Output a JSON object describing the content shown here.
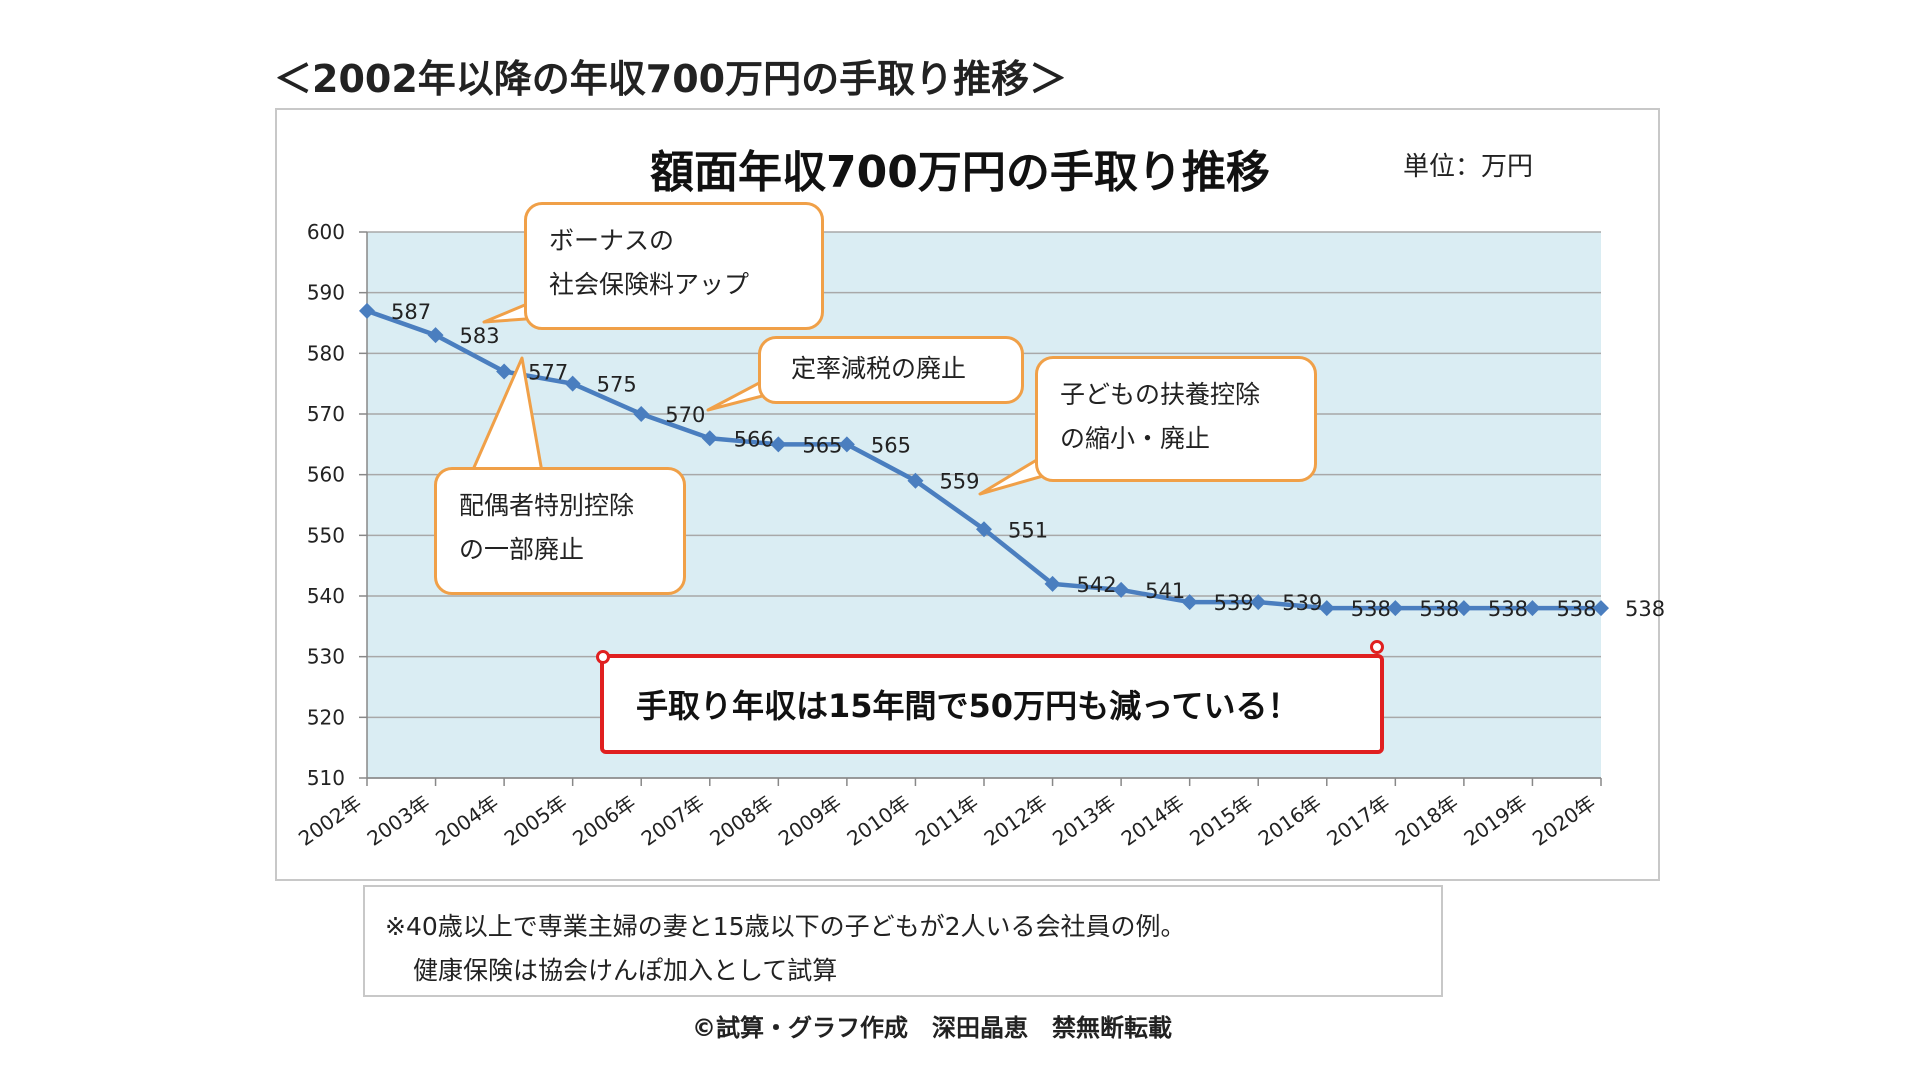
{
  "page_title": "＜2002年以降の年収700万円の手取り推移＞",
  "unit": "単位：万円",
  "callouts": {
    "bonus": [
      "ボーナスの",
      "社会保険料アップ"
    ],
    "teiritsu": [
      "定率減税の廃止"
    ],
    "fuyou": [
      "子どもの扶養控除",
      "の縮小・廃止"
    ],
    "haigu": [
      "配偶者特別控除",
      "の一部廃止"
    ]
  },
  "highlight": "手取り年収は15年間で50万円も減っている！",
  "note": {
    "line1": "※40歳以上で専業主婦の妻と15歳以下の子どもが2人いる会社員の例。",
    "line2": "健康保険は協会けんぽ加入として試算"
  },
  "credit": "©試算・グラフ作成　深田晶恵　禁無断転載",
  "colors": {
    "plot_background": "#daedf3",
    "line": "#4a7ebf",
    "callout_border": "#f0a048",
    "highlight_border": "#e02020",
    "grid": "#a8a8a8"
  },
  "chart_data": {
    "type": "line",
    "title": "額面年収700万円の手取り推移",
    "xlabel": "",
    "ylabel": "",
    "categories": [
      "2002年",
      "2003年",
      "2004年",
      "2005年",
      "2006年",
      "2007年",
      "2008年",
      "2009年",
      "2010年",
      "2011年",
      "2012年",
      "2013年",
      "2014年",
      "2015年",
      "2016年",
      "2017年",
      "2018年",
      "2019年",
      "2020年"
    ],
    "values": [
      587,
      583,
      577,
      575,
      570,
      566,
      565,
      565,
      559,
      551,
      542,
      541,
      539,
      539,
      538,
      538,
      538,
      538,
      538
    ],
    "ylim": [
      510,
      600
    ],
    "yticks": [
      510,
      520,
      530,
      540,
      550,
      560,
      570,
      580,
      590,
      600
    ],
    "grid": true,
    "marker": "diamond"
  }
}
